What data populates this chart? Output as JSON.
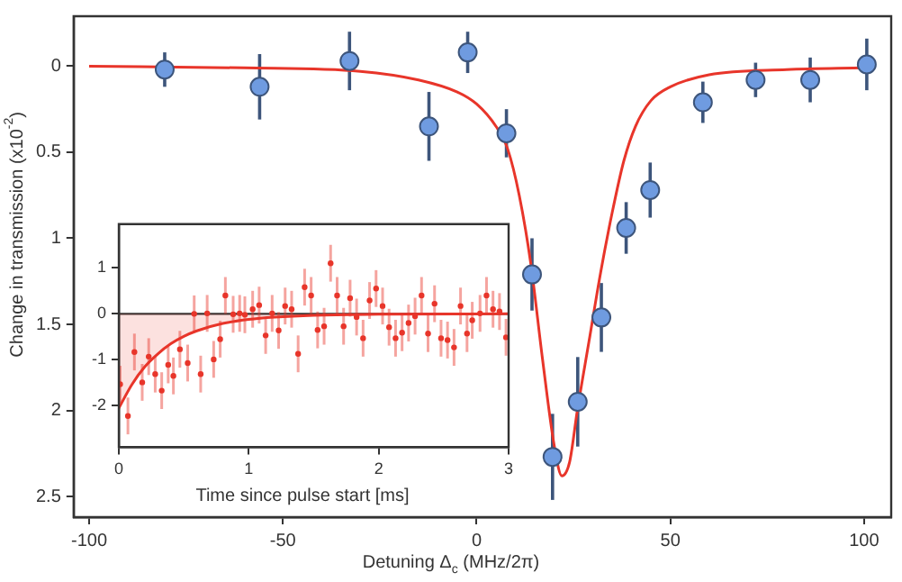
{
  "chart_data": [
    {
      "type": "scatter",
      "xlabel": "Detuning Δ$_{c}$ (MHz/2π)",
      "ylabel": "Change in transmission (x10$^{-2}$)",
      "xlim": [
        -104,
        107
      ],
      "ylim": [
        2.62,
        -0.29
      ],
      "xticks": [
        -100,
        -50,
        0,
        50,
        100
      ],
      "yticks": [
        0,
        0.5,
        1,
        1.5,
        2,
        2.5
      ],
      "grid": false,
      "legend": false,
      "series": [
        {
          "type": "line",
          "marker": "none",
          "color": "#e8352a",
          "x": [
            -100,
            -60,
            -30,
            -15,
            -5,
            0,
            5,
            8,
            11,
            14,
            17,
            20,
            22,
            24,
            26,
            29,
            32,
            35,
            38,
            41,
            45,
            50,
            60,
            80,
            100
          ],
          "values": [
            0,
            0.01,
            0.03,
            0.08,
            0.15,
            0.22,
            0.35,
            0.48,
            0.75,
            1.15,
            1.7,
            2.2,
            2.38,
            2.3,
            2.0,
            1.6,
            1.2,
            0.85,
            0.55,
            0.35,
            0.2,
            0.12,
            0.05,
            0.02,
            0.01
          ]
        },
        {
          "type": "scatter",
          "marker": "circle",
          "color": "#6f9be0",
          "x": [
            -80.5,
            -56,
            -32.8,
            -12.3,
            -2.3,
            7.7,
            14.3,
            19.6,
            26.1,
            32.2,
            38.6,
            44.8,
            58.4,
            72,
            86.1,
            100.7
          ],
          "values": [
            0.02,
            0.12,
            -0.03,
            0.35,
            -0.08,
            0.39,
            1.21,
            2.27,
            1.95,
            1.46,
            0.94,
            0.72,
            0.21,
            0.08,
            0.08,
            -0.01
          ],
          "errors": [
            0.1,
            0.19,
            0.17,
            0.2,
            0.12,
            0.14,
            0.21,
            0.25,
            0.26,
            0.2,
            0.15,
            0.16,
            0.12,
            0.1,
            0.13,
            0.15
          ]
        }
      ]
    },
    {
      "type": "scatter",
      "xlabel": "Time since pulse start [ms]",
      "xlim": [
        0,
        3
      ],
      "ylim": [
        -2.9,
        1.95
      ],
      "xticks": [
        0,
        1,
        2,
        3
      ],
      "yticks": [
        -2,
        -1,
        0,
        1
      ],
      "grid": false,
      "legend": false,
      "ref_lines": [
        {
          "axis": "y",
          "value": 0,
          "color": "#333333"
        }
      ],
      "series": [
        {
          "type": "area",
          "marker": "none",
          "color": "#e8352a",
          "x": [
            0,
            0.1,
            0.2,
            0.3,
            0.4,
            0.5,
            0.6,
            0.8,
            1,
            1.2,
            1.5,
            2,
            3
          ],
          "values": [
            -2.05,
            -1.54,
            -1.15,
            -0.87,
            -0.65,
            -0.49,
            -0.37,
            -0.21,
            -0.12,
            -0.07,
            -0.03,
            -0.01,
            0
          ]
        },
        {
          "type": "scatter",
          "marker": "circle",
          "color": "#e8352a",
          "x": [
            0.01,
            0.07,
            0.12,
            0.18,
            0.23,
            0.28,
            0.33,
            0.38,
            0.42,
            0.47,
            0.53,
            0.58,
            0.63,
            0.68,
            0.73,
            0.78,
            0.82,
            0.88,
            0.93,
            0.97,
            1.03,
            1.08,
            1.13,
            1.18,
            1.23,
            1.28,
            1.33,
            1.38,
            1.43,
            1.48,
            1.53,
            1.58,
            1.63,
            1.68,
            1.73,
            1.78,
            1.83,
            1.88,
            1.93,
            1.98,
            2.03,
            2.08,
            2.13,
            2.18,
            2.23,
            2.28,
            2.33,
            2.38,
            2.43,
            2.48,
            2.53,
            2.58,
            2.63,
            2.68,
            2.72,
            2.78,
            2.83,
            2.88,
            2.93,
            2.98
          ],
          "values": [
            -1.53,
            -2.22,
            -0.83,
            -1.49,
            -0.93,
            -1.31,
            -1.67,
            -1.11,
            -1.35,
            -0.77,
            -1.07,
            0,
            -1.31,
            0.01,
            -0.99,
            -0.55,
            0.4,
            -0.01,
            0.01,
            -0.02,
            0.1,
            0.19,
            -0.47,
            0.01,
            -0.36,
            0.17,
            0.1,
            -0.87,
            0.58,
            0.4,
            -0.35,
            -0.27,
            1.1,
            0.4,
            -0.27,
            0.34,
            -0.07,
            -0.53,
            0.29,
            0.55,
            0.17,
            -0.29,
            -0.53,
            -0.41,
            -0.2,
            -0.05,
            0.4,
            -0.43,
            0.22,
            -0.53,
            -0.57,
            -0.73,
            0.17,
            -0.43,
            -0.14,
            0.01,
            0.4,
            0.1,
            0.05,
            -0.51
          ],
          "errors": [
            0.4,
            0.4,
            0.4,
            0.4,
            0.4,
            0.4,
            0.4,
            0.4,
            0.4,
            0.4,
            0.4,
            0.4,
            0.4,
            0.4,
            0.4,
            0.4,
            0.4,
            0.4,
            0.4,
            0.4,
            0.4,
            0.4,
            0.4,
            0.4,
            0.4,
            0.4,
            0.4,
            0.4,
            0.4,
            0.4,
            0.4,
            0.4,
            0.4,
            0.4,
            0.4,
            0.4,
            0.4,
            0.4,
            0.4,
            0.4,
            0.4,
            0.4,
            0.4,
            0.4,
            0.4,
            0.4,
            0.4,
            0.4,
            0.4,
            0.4,
            0.4,
            0.4,
            0.4,
            0.4,
            0.4,
            0.4,
            0.4,
            0.4,
            0.4,
            0.4
          ]
        }
      ]
    }
  ]
}
